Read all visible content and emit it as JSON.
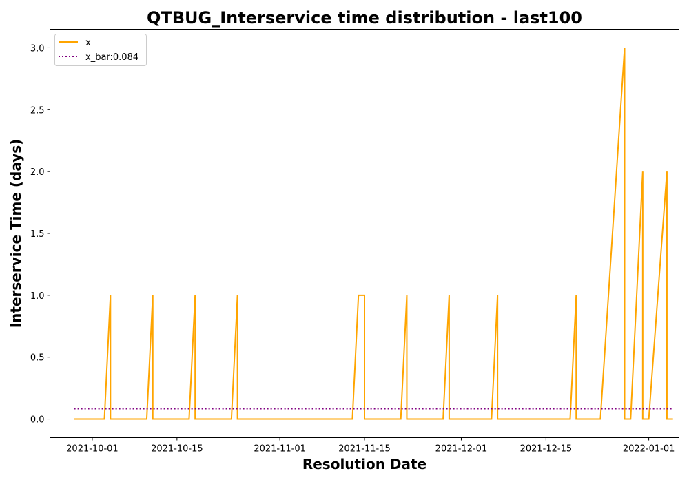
{
  "chart_data": {
    "type": "line",
    "title": "QTBUG_Interservice time distribution - last100",
    "xlabel": "Resolution Date",
    "ylabel": "Interservice Time (days)",
    "ylim": [
      -0.15,
      3.15
    ],
    "xlim": [
      "2021-09-24",
      "2022-01-06"
    ],
    "x_ticks": [
      "2021-10-01",
      "2021-10-15",
      "2021-11-01",
      "2021-11-15",
      "2021-12-01",
      "2021-12-15",
      "2022-01-01"
    ],
    "y_ticks": [
      0.0,
      0.5,
      1.0,
      1.5,
      2.0,
      2.5,
      3.0
    ],
    "y_tick_labels": [
      "0.0",
      "0.5",
      "1.0",
      "1.5",
      "2.0",
      "2.5",
      "3.0"
    ],
    "grid": false,
    "legend_position": "top-left",
    "series": [
      {
        "name": "x",
        "color": "#ffa500",
        "style": "solid",
        "points": [
          [
            "2021-09-28",
            0
          ],
          [
            "2021-10-03",
            0
          ],
          [
            "2021-10-04",
            1
          ],
          [
            "2021-10-04",
            0
          ],
          [
            "2021-10-10",
            0
          ],
          [
            "2021-10-11",
            1
          ],
          [
            "2021-10-11",
            0
          ],
          [
            "2021-10-17",
            0
          ],
          [
            "2021-10-18",
            1
          ],
          [
            "2021-10-18",
            0
          ],
          [
            "2021-10-24",
            0
          ],
          [
            "2021-10-25",
            1
          ],
          [
            "2021-10-25",
            0
          ],
          [
            "2021-11-13",
            0
          ],
          [
            "2021-11-14",
            1
          ],
          [
            "2021-11-15",
            1
          ],
          [
            "2021-11-15",
            0
          ],
          [
            "2021-11-21",
            0
          ],
          [
            "2021-11-22",
            1
          ],
          [
            "2021-11-22",
            0
          ],
          [
            "2021-11-28",
            0
          ],
          [
            "2021-11-29",
            1
          ],
          [
            "2021-11-29",
            0
          ],
          [
            "2021-12-06",
            0
          ],
          [
            "2021-12-07",
            1
          ],
          [
            "2021-12-07",
            0
          ],
          [
            "2021-12-19",
            0
          ],
          [
            "2021-12-20",
            1
          ],
          [
            "2021-12-20",
            0
          ],
          [
            "2021-12-24",
            0
          ],
          [
            "2021-12-28",
            3
          ],
          [
            "2021-12-28",
            0
          ],
          [
            "2021-12-29",
            0
          ],
          [
            "2021-12-31",
            2
          ],
          [
            "2021-12-31",
            0
          ],
          [
            "2022-01-01",
            0
          ],
          [
            "2022-01-04",
            2
          ],
          [
            "2022-01-04",
            0
          ],
          [
            "2022-01-05",
            0
          ]
        ]
      },
      {
        "name": "x_bar:0.084",
        "color": "#800080",
        "style": "dotted",
        "points": [
          [
            "2021-09-28",
            0.084
          ],
          [
            "2022-01-05",
            0.084
          ]
        ]
      }
    ]
  }
}
